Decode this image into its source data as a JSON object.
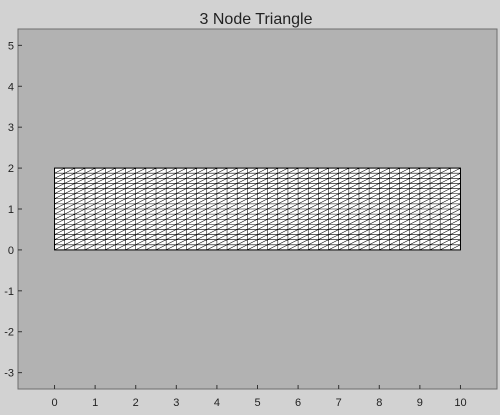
{
  "chart_data": {
    "type": "mesh",
    "title": "3 Node Triangle",
    "xlabel": "",
    "ylabel": "",
    "xlim": [
      -0.9,
      10.9
    ],
    "ylim": [
      -3.4,
      5.4
    ],
    "xticks": [
      0,
      1,
      2,
      3,
      4,
      5,
      6,
      7,
      8,
      9,
      10
    ],
    "yticks": [
      -3,
      -2,
      -1,
      0,
      1,
      2,
      3,
      4,
      5
    ],
    "xtick_labels": [
      "0",
      "1",
      "2",
      "3",
      "4",
      "5",
      "6",
      "7",
      "8",
      "9",
      "10"
    ],
    "ytick_labels": [
      "-3",
      "-2",
      "-1",
      "0",
      "1",
      "2",
      "3",
      "4",
      "5"
    ],
    "grid": false,
    "mesh": {
      "element": "3-node triangle",
      "x_range": [
        0,
        10
      ],
      "y_range": [
        0,
        2
      ],
      "divisions_x": 40,
      "divisions_y": 16,
      "diagonal": "lower-left to upper-right"
    },
    "colors": {
      "figure_background": "#d2d2d2",
      "axes_background": "#b2b2b2",
      "mesh_fill": "#ffffff",
      "mesh_line": "#000000",
      "text": "#222222"
    }
  }
}
